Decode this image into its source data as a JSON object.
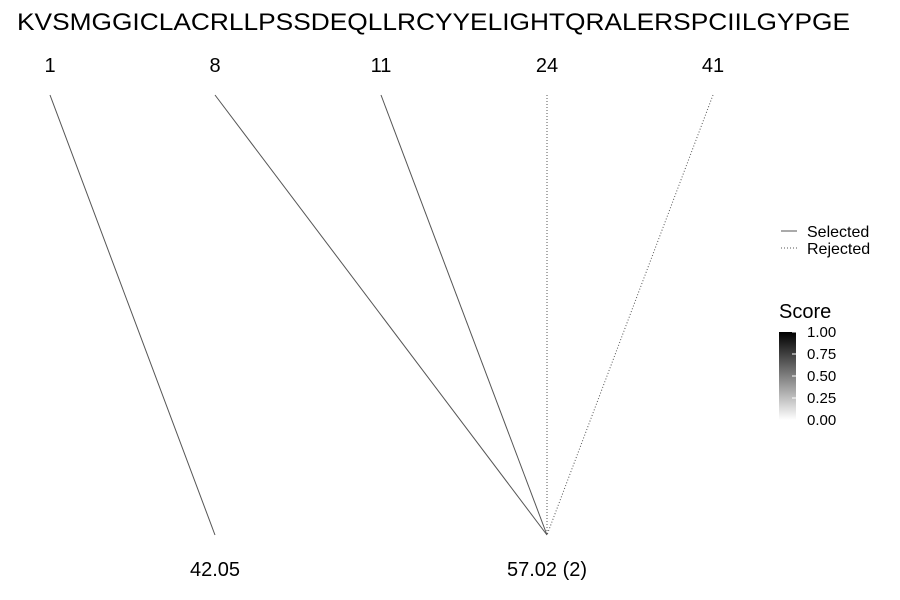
{
  "chart_data": {
    "type": "diagram",
    "sequence": "KVSMGGICLACRLLPSSDEQLLRCYYELIGHTQRALERSPCIILGYPGE",
    "positions": [
      "1",
      "8",
      "11",
      "24",
      "41"
    ],
    "masses": [
      "42.05",
      "57.02 (2)"
    ],
    "links": [
      {
        "from": "1",
        "to": "42.05",
        "status": "Selected",
        "score": 0.6
      },
      {
        "from": "8",
        "to": "57.02 (2)",
        "status": "Selected",
        "score": 0.6
      },
      {
        "from": "11",
        "to": "57.02 (2)",
        "status": "Selected",
        "score": 0.6
      },
      {
        "from": "24",
        "to": "57.02 (2)",
        "status": "Rejected",
        "score": 0.6
      },
      {
        "from": "41",
        "to": "57.02 (2)",
        "status": "Rejected",
        "score": 0.6
      }
    ],
    "legend": {
      "selected_label": "Selected",
      "rejected_label": "Rejected",
      "placement": "right"
    },
    "score_scale": {
      "title": "Score",
      "ticks": [
        "1.00",
        "0.75",
        "0.50",
        "0.25",
        "0.00"
      ],
      "range": [
        0,
        1
      ],
      "high_color": "#000000",
      "low_color": "#ffffff"
    },
    "line_color": "#555555"
  }
}
